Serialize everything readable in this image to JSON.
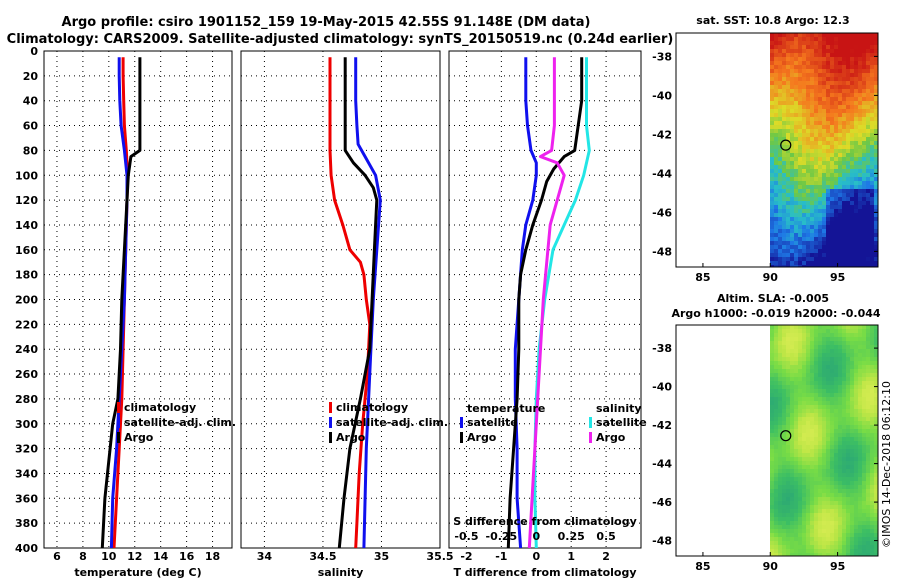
{
  "title_line1": "Argo profile: csiro 1901152_159 19-May-2015 42.55S 91.148E (DM data)",
  "title_line2": "Climatology: CARS2009. Satellite-adjusted climatology: synTS_20150519.nc (0.24d earlier)",
  "colors": {
    "climatology": "#ee0000",
    "satellite": "#1010ee",
    "argo": "#000000",
    "sal_satellite": "#22e6e6",
    "sal_argo": "#ee22ee"
  },
  "depth_ticks": [
    "0",
    "20",
    "40",
    "60",
    "80",
    "100",
    "120",
    "140",
    "160",
    "180",
    "200",
    "220",
    "240",
    "260",
    "280",
    "300",
    "320",
    "340",
    "360",
    "380",
    "400"
  ],
  "chart_data": [
    {
      "type": "line",
      "id": "temperature",
      "xlabel": "temperature (deg C)",
      "ylabel": "depth",
      "xlim": [
        5,
        19.5
      ],
      "ylim": [
        400,
        0
      ],
      "xticks": [
        "6",
        "8",
        "10",
        "12",
        "14",
        "16",
        "18"
      ],
      "legend": [
        "climatology",
        "satellite-adj. clim.",
        "Argo"
      ],
      "series": [
        {
          "name": "climatology",
          "color": "#ee0000",
          "depth": [
            5,
            20,
            40,
            60,
            80,
            100,
            120,
            160,
            200,
            240,
            280,
            320,
            360,
            400
          ],
          "value": [
            11.1,
            11.1,
            11.15,
            11.2,
            11.35,
            11.45,
            11.4,
            11.3,
            11.2,
            11.1,
            11.0,
            10.8,
            10.6,
            10.4
          ]
        },
        {
          "name": "satellite-adj. clim.",
          "color": "#1010ee",
          "depth": [
            5,
            20,
            40,
            60,
            80,
            100,
            120,
            160,
            200,
            240,
            280,
            320,
            360,
            400
          ],
          "value": [
            10.8,
            10.8,
            10.85,
            10.95,
            11.2,
            11.4,
            11.4,
            11.3,
            11.2,
            11.0,
            10.8,
            10.6,
            10.3,
            10.2
          ]
        },
        {
          "name": "Argo",
          "color": "#000000",
          "depth": [
            5,
            40,
            60,
            80,
            85,
            100,
            120,
            160,
            200,
            240,
            280,
            300,
            320,
            340,
            360,
            380,
            400
          ],
          "value": [
            12.4,
            12.4,
            12.4,
            12.4,
            11.7,
            11.5,
            11.4,
            11.2,
            11.0,
            10.9,
            10.7,
            10.3,
            10.1,
            9.9,
            9.7,
            9.6,
            9.5
          ]
        }
      ]
    },
    {
      "type": "line",
      "id": "salinity",
      "xlabel": "salinity",
      "ylabel": "depth",
      "xlim": [
        33.8,
        35.5
      ],
      "ylim": [
        400,
        0
      ],
      "xticks": [
        "34",
        "34.5",
        "35",
        "35.5"
      ],
      "legend": [
        "climatology",
        "satellite-adj. clim.",
        "Argo"
      ],
      "series": [
        {
          "name": "climatology",
          "color": "#ee0000",
          "depth": [
            5,
            40,
            60,
            80,
            100,
            120,
            140,
            160,
            170,
            180,
            190,
            200,
            220,
            260,
            300,
            340,
            380,
            400
          ],
          "value": [
            34.56,
            34.56,
            34.56,
            34.56,
            34.57,
            34.6,
            34.67,
            34.73,
            34.82,
            34.85,
            34.86,
            34.87,
            34.9,
            34.88,
            34.84,
            34.81,
            34.79,
            34.78
          ]
        },
        {
          "name": "satellite-adj. clim.",
          "color": "#1010ee",
          "depth": [
            5,
            40,
            60,
            75,
            85,
            100,
            120,
            160,
            200,
            240,
            280,
            320,
            360,
            400
          ],
          "value": [
            34.78,
            34.78,
            34.79,
            34.8,
            34.86,
            34.95,
            34.99,
            34.96,
            34.93,
            34.91,
            34.89,
            34.87,
            34.86,
            34.85
          ]
        },
        {
          "name": "Argo",
          "color": "#000000",
          "depth": [
            5,
            40,
            60,
            80,
            90,
            100,
            110,
            120,
            160,
            200,
            240,
            280,
            320,
            360,
            400
          ],
          "value": [
            34.69,
            34.69,
            34.69,
            34.69,
            34.76,
            34.86,
            34.93,
            34.96,
            34.94,
            34.92,
            34.9,
            34.82,
            34.73,
            34.68,
            34.64
          ]
        }
      ]
    },
    {
      "type": "line",
      "id": "difference",
      "xlabel": "T difference from climatology",
      "x2label": "S difference from climatology",
      "ylabel": "depth",
      "xlim": [
        -2.5,
        3
      ],
      "x2lim": [
        -0.625,
        0.75
      ],
      "ylim": [
        400,
        0
      ],
      "xticks": [
        "-2",
        "-1",
        "0",
        "1",
        "2"
      ],
      "x2ticks": [
        "-0.5",
        "-0.25",
        "0",
        "0.25",
        "0.5"
      ],
      "legend_temperature_title": "temperature",
      "legend_salinity_title": "salinity",
      "legend_temperature": [
        "satellite",
        "Argo"
      ],
      "legend_salinity": [
        "satellite",
        "Argo"
      ],
      "series": [
        {
          "name": "temperature satellite",
          "color": "#1010ee",
          "depth": [
            5,
            40,
            60,
            80,
            90,
            100,
            120,
            140,
            160,
            200,
            240,
            280,
            320,
            360,
            400
          ],
          "value": [
            -0.3,
            -0.3,
            -0.25,
            -0.15,
            0.0,
            0.0,
            -0.1,
            -0.3,
            -0.4,
            -0.5,
            -0.6,
            -0.6,
            -0.55,
            -0.55,
            -0.45
          ]
        },
        {
          "name": "temperature Argo",
          "color": "#000000",
          "depth": [
            5,
            40,
            60,
            80,
            85,
            95,
            105,
            120,
            140,
            160,
            180,
            200,
            240,
            280,
            320,
            360,
            400
          ],
          "value": [
            1.3,
            1.3,
            1.2,
            1.1,
            0.8,
            0.5,
            0.3,
            0.15,
            -0.1,
            -0.3,
            -0.45,
            -0.5,
            -0.5,
            -0.55,
            -0.65,
            -0.75,
            -0.8
          ]
        },
        {
          "name": "salinity satellite",
          "color": "#22e6e6",
          "depth": [
            5,
            40,
            60,
            80,
            100,
            120,
            140,
            160,
            200,
            240,
            280,
            320,
            360,
            400
          ],
          "value": [
            0.36,
            0.36,
            0.36,
            0.38,
            0.34,
            0.28,
            0.2,
            0.12,
            0.06,
            0.02,
            0.0,
            -0.01,
            -0.01,
            0.0
          ]
        },
        {
          "name": "salinity Argo",
          "color": "#ee22ee",
          "depth": [
            5,
            40,
            60,
            80,
            85,
            90,
            100,
            120,
            140,
            200,
            300,
            400
          ],
          "value": [
            0.13,
            0.13,
            0.13,
            0.11,
            0.03,
            0.15,
            0.2,
            0.15,
            0.1,
            0.05,
            0.0,
            -0.05
          ]
        }
      ]
    },
    {
      "type": "heatmap",
      "id": "sst-map",
      "title": "sat. SST: 10.8 Argo: 12.3",
      "xlim": [
        83,
        98
      ],
      "ylim": [
        -48.8,
        -36.8
      ],
      "xticks": [
        "85",
        "90",
        "95"
      ],
      "yticks": [
        "-38",
        "-40",
        "-42",
        "-44",
        "-46",
        "-48"
      ],
      "marker": [
        91.15,
        -42.55
      ],
      "no_data_west_of": 90
    },
    {
      "type": "heatmap",
      "id": "sla-map",
      "title": "Altim. SLA: -0.005",
      "subtitle": "Argo h1000: -0.019 h2000: -0.044",
      "xlim": [
        83,
        98
      ],
      "ylim": [
        -48.8,
        -36.8
      ],
      "xticks": [
        "85",
        "90",
        "95"
      ],
      "yticks": [
        "-38",
        "-40",
        "-42",
        "-44",
        "-46",
        "-48"
      ],
      "marker": [
        91.15,
        -42.55
      ],
      "no_data_west_of": 90
    }
  ],
  "stamp": "©IMOS 14-Dec-2018 06:12:10"
}
